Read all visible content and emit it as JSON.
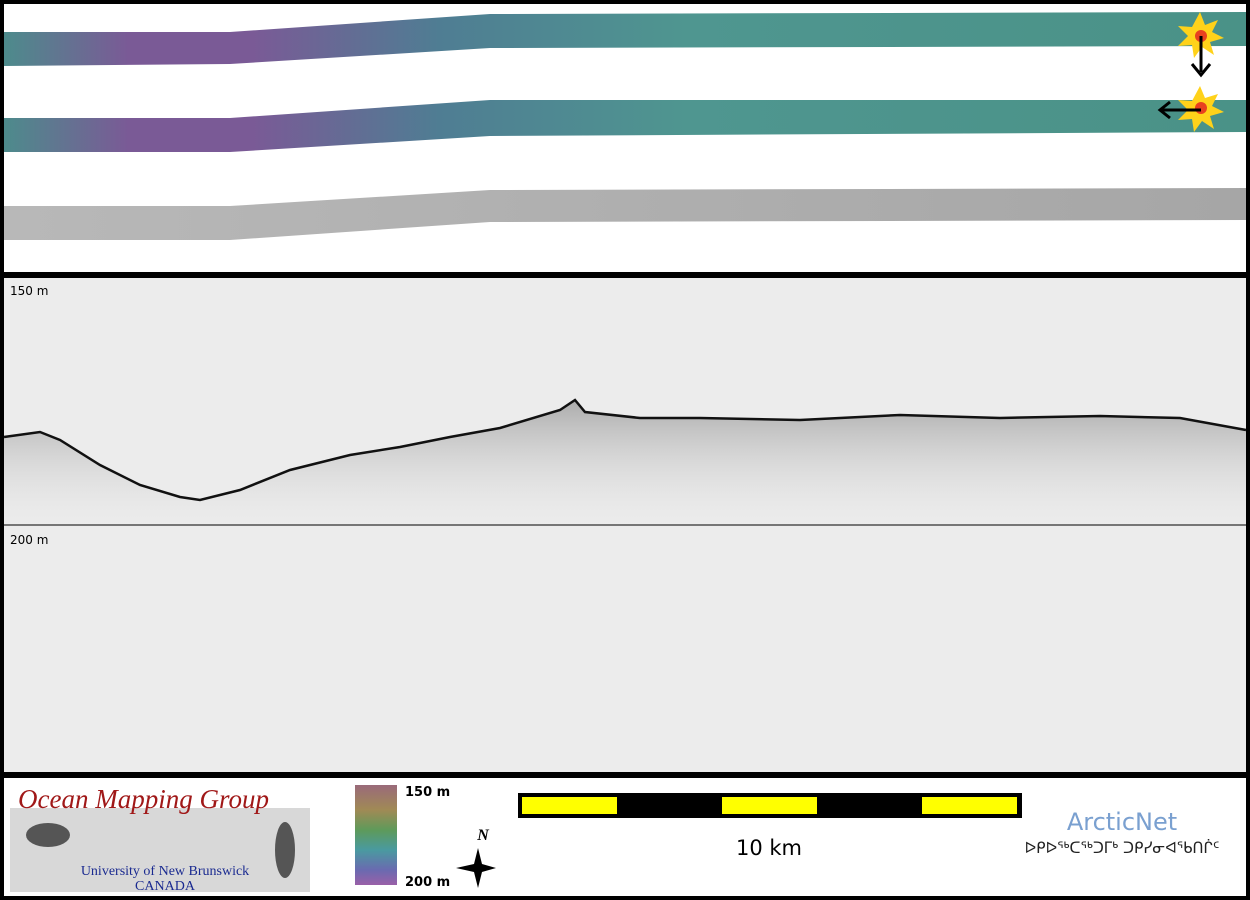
{
  "profile": {
    "top_depth_label": "150 m",
    "bottom_depth_label": "200 m"
  },
  "colorbar": {
    "top_label": "150 m",
    "bottom_label": "200 m"
  },
  "logo": {
    "title": "Ocean Mapping Group",
    "university": "University of New Brunswick",
    "country": "CANADA"
  },
  "compass": {
    "label": "N"
  },
  "scale_bar": {
    "label": "10 km"
  },
  "partner": {
    "name": "ArcticNet",
    "syllabics": "ᐅᑭᐅᖅᑕᖅᑐᒥᒃ ᑐᑭᓯᓂᐊᖃᑎᒌᑦ"
  }
}
